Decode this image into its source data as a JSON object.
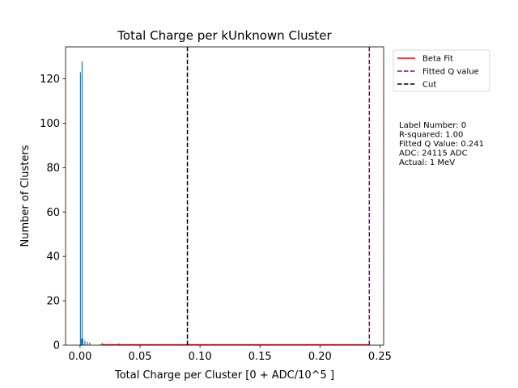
{
  "chart_data": {
    "type": "bar",
    "title": "Total Charge per kUnknown Cluster",
    "xlabel": "Total Charge per Cluster [0 + ADC/10^5 ]",
    "ylabel": "Number of Clusters",
    "xlim": [
      -0.0121,
      0.2531
    ],
    "ylim": [
      0,
      134.4
    ],
    "x_ticks": [
      0.0,
      0.05,
      0.1,
      0.15,
      0.2,
      0.25
    ],
    "x_tick_labels": [
      "0.00",
      "0.05",
      "0.10",
      "0.15",
      "0.20",
      "0.25"
    ],
    "y_ticks": [
      0,
      20,
      40,
      60,
      80,
      100,
      120
    ],
    "y_tick_labels": [
      "0",
      "20",
      "40",
      "60",
      "80",
      "100",
      "120"
    ],
    "bar_width": 0.0005,
    "histogram": {
      "name": "",
      "color": "#1f77b4",
      "x": [
        0.0003,
        0.001,
        0.0017,
        0.0023,
        0.004,
        0.006,
        0.008,
        0.017,
        0.0185,
        0.0325
      ],
      "values": [
        123,
        3,
        128,
        3,
        2,
        1.5,
        1.2,
        0.5,
        1,
        0.8
      ]
    },
    "series": [
      {
        "name": "Beta Fit",
        "type": "line",
        "color": "#ff0000",
        "dash": "solid",
        "x": [
          0.018,
          0.24115
        ],
        "values": [
          0.2,
          0.2
        ]
      },
      {
        "name": "Fitted Q value",
        "type": "vline",
        "color": "#800080",
        "dash": "dashed",
        "x": 0.24115
      },
      {
        "name": "Cut",
        "type": "vline",
        "color": "#000000",
        "dash": "dashed",
        "x": 0.0895
      }
    ],
    "legend": {
      "placement": "outside upper right",
      "entries": [
        "Beta Fit",
        "Fitted Q value",
        "Cut"
      ]
    },
    "annotation": [
      "Label Number: 0",
      "R-squared: 1.00",
      "Fitted Q Value: 0.241",
      "ADC: 24115 ADC",
      "Actual: 1 MeV"
    ],
    "grid": false
  }
}
